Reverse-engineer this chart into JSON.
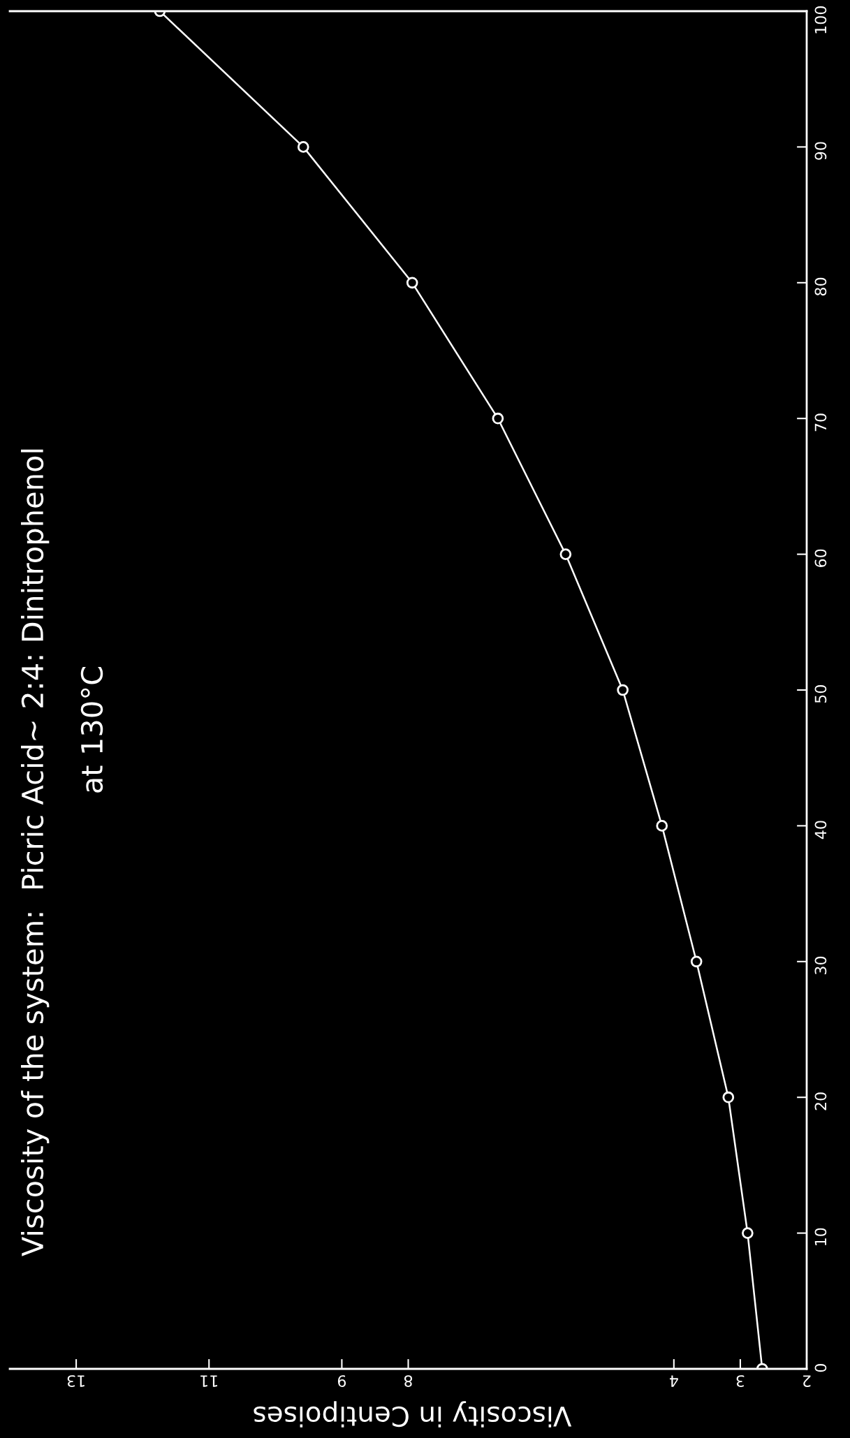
{
  "chart_data": {
    "type": "line",
    "orientation": "horizontal",
    "title": "Viscosity of the system:  Picric Acid~ 2:4: Dinitrophenol",
    "subtitle": "at 130°C",
    "xlabel": "Viscosity in Centipoises",
    "x": [
      0,
      10,
      20,
      30,
      40,
      50,
      60,
      70,
      80,
      90,
      100
    ],
    "series": [
      {
        "color": "#ffffff",
        "values": [
          2.67,
          2.89,
          3.18,
          3.66,
          4.18,
          4.77,
          5.63,
          6.65,
          7.94,
          9.58,
          11.74
        ]
      }
    ],
    "xlim": [
      14,
      2
    ],
    "xticks": [
      2,
      3,
      4,
      8,
      9,
      11,
      13
    ],
    "ylim": [
      0,
      100
    ],
    "yticks": [
      0,
      10,
      20,
      30,
      40,
      50,
      60,
      70,
      80,
      90,
      100
    ],
    "marker": "circle",
    "line_style": "solid",
    "grid": false,
    "legend": false
  }
}
